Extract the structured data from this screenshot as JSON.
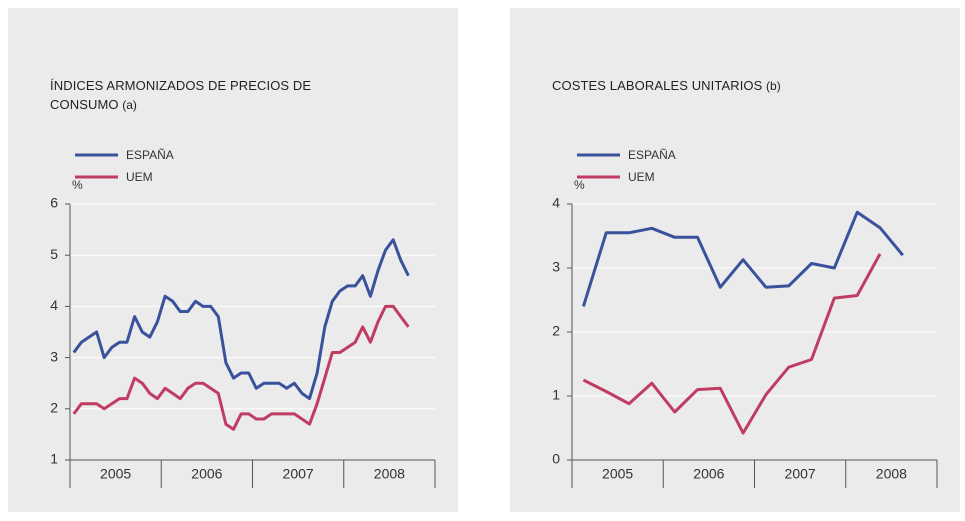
{
  "chart_data": [
    {
      "type": "line",
      "title": "ÍNDICES ARMONIZADOS DE PRECIOS DE CONSUMO",
      "note": "(a)",
      "ylabel": "%",
      "x": [
        2005.042,
        2005.125,
        2005.208,
        2005.292,
        2005.375,
        2005.458,
        2005.542,
        2005.625,
        2005.708,
        2005.792,
        2005.875,
        2005.958,
        2006.042,
        2006.125,
        2006.208,
        2006.292,
        2006.375,
        2006.458,
        2006.542,
        2006.625,
        2006.708,
        2006.792,
        2006.875,
        2006.958,
        2007.042,
        2007.125,
        2007.208,
        2007.292,
        2007.375,
        2007.458,
        2007.542,
        2007.625,
        2007.708,
        2007.792,
        2007.875,
        2007.958,
        2008.042,
        2008.125,
        2008.208,
        2008.292,
        2008.375,
        2008.458,
        2008.542,
        2008.625,
        2008.708
      ],
      "series": [
        {
          "name": "ESPAÑA",
          "color": "#3a529b",
          "values": [
            3.1,
            3.3,
            3.4,
            3.5,
            3.0,
            3.2,
            3.3,
            3.3,
            3.8,
            3.5,
            3.4,
            3.7,
            4.2,
            4.1,
            3.9,
            3.9,
            4.1,
            4.0,
            4.0,
            3.8,
            2.9,
            2.6,
            2.7,
            2.7,
            2.4,
            2.5,
            2.5,
            2.5,
            2.4,
            2.5,
            2.3,
            2.2,
            2.7,
            3.6,
            4.1,
            4.3,
            4.4,
            4.4,
            4.6,
            4.2,
            4.7,
            5.1,
            5.3,
            4.9,
            4.6
          ]
        },
        {
          "name": "UEM",
          "color": "#c03c63",
          "values": [
            1.9,
            2.1,
            2.1,
            2.1,
            2.0,
            2.1,
            2.2,
            2.2,
            2.6,
            2.5,
            2.3,
            2.2,
            2.4,
            2.3,
            2.2,
            2.4,
            2.5,
            2.5,
            2.4,
            2.3,
            1.7,
            1.6,
            1.9,
            1.9,
            1.8,
            1.8,
            1.9,
            1.9,
            1.9,
            1.9,
            1.8,
            1.7,
            2.1,
            2.6,
            3.1,
            3.1,
            3.2,
            3.3,
            3.6,
            3.3,
            3.7,
            4.0,
            4.0,
            3.8,
            3.6
          ]
        }
      ],
      "xlim": [
        2005,
        2009
      ],
      "ylim": [
        1,
        6
      ],
      "yticks": [
        1,
        2,
        3,
        4,
        5,
        6
      ],
      "xticks": [
        {
          "value": 2005.5,
          "label": "2005"
        },
        {
          "value": 2006.5,
          "label": "2006"
        },
        {
          "value": 2007.5,
          "label": "2007"
        },
        {
          "value": 2008.5,
          "label": "2008"
        }
      ],
      "xminor": [
        2005,
        2006,
        2007,
        2008,
        2009
      ],
      "grid": true
    },
    {
      "type": "line",
      "title": "COSTES LABORALES UNITARIOS",
      "note": "(b)",
      "ylabel": "%",
      "x": [
        2005.125,
        2005.375,
        2005.625,
        2005.875,
        2006.125,
        2006.375,
        2006.625,
        2006.875,
        2007.125,
        2007.375,
        2007.625,
        2007.875,
        2008.125,
        2008.375,
        2008.625
      ],
      "series": [
        {
          "name": "ESPAÑA",
          "color": "#3a529b",
          "values": [
            2.4,
            3.55,
            3.55,
            3.62,
            3.48,
            3.48,
            2.7,
            3.13,
            2.7,
            2.72,
            3.07,
            3.0,
            3.87,
            3.63,
            3.2
          ]
        },
        {
          "name": "UEM",
          "color": "#c03c63",
          "values": [
            1.25,
            1.07,
            0.88,
            1.2,
            0.75,
            1.1,
            1.12,
            0.42,
            1.02,
            1.45,
            1.57,
            2.53,
            2.57,
            3.22,
            null
          ]
        }
      ],
      "xlim": [
        2005,
        2009
      ],
      "ylim": [
        0,
        4
      ],
      "yticks": [
        0,
        1,
        2,
        3,
        4
      ],
      "xticks": [
        {
          "value": 2005.5,
          "label": "2005"
        },
        {
          "value": 2006.5,
          "label": "2006"
        },
        {
          "value": 2007.5,
          "label": "2007"
        },
        {
          "value": 2008.5,
          "label": "2008"
        }
      ],
      "xminor": [
        2005,
        2006,
        2007,
        2008,
        2009
      ],
      "grid": true
    }
  ]
}
